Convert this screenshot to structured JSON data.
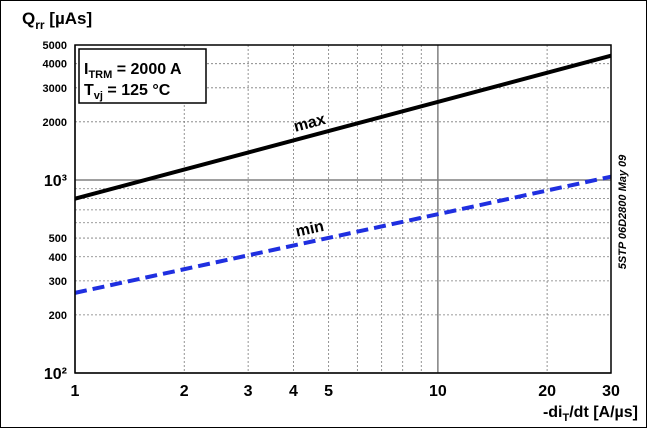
{
  "chart_data": {
    "type": "line",
    "y_label": {
      "main": "Q",
      "sub": "rr",
      "rest": " [µAs]"
    },
    "x_label": {
      "main": "-di",
      "sub": "T",
      "rest": "/dt [A/µs]"
    },
    "annotation": {
      "line1": {
        "main": "I",
        "sub": "TRM",
        "rest": " = 2000 A"
      },
      "line2": {
        "main": "T",
        "sub": "vj",
        "rest": " = 125 °C"
      }
    },
    "side_note": "5STP 06D2800 May 09",
    "x_log": true,
    "y_log": true,
    "grid": true,
    "xlim": [
      1,
      30
    ],
    "ylim": [
      100,
      5000
    ],
    "xticks": [
      1,
      2,
      3,
      4,
      5,
      10,
      20,
      30
    ],
    "minor_xticks": [
      6,
      7,
      8,
      9
    ],
    "yticks": [
      {
        "value": 100,
        "label": "10²"
      },
      200,
      300,
      400,
      500,
      {
        "value": 1000,
        "label": "10³"
      },
      2000,
      3000,
      4000,
      5000
    ],
    "minor_yticks": [
      600,
      700,
      800,
      900
    ],
    "series": [
      {
        "name": "max",
        "color": "#000000",
        "dashed": false,
        "x": [
          1,
          30
        ],
        "values": [
          800,
          4400
        ]
      },
      {
        "name": "min",
        "color": "#1f2fe0",
        "dashed": true,
        "x": [
          1,
          30
        ],
        "values": [
          260,
          1040
        ]
      }
    ]
  }
}
